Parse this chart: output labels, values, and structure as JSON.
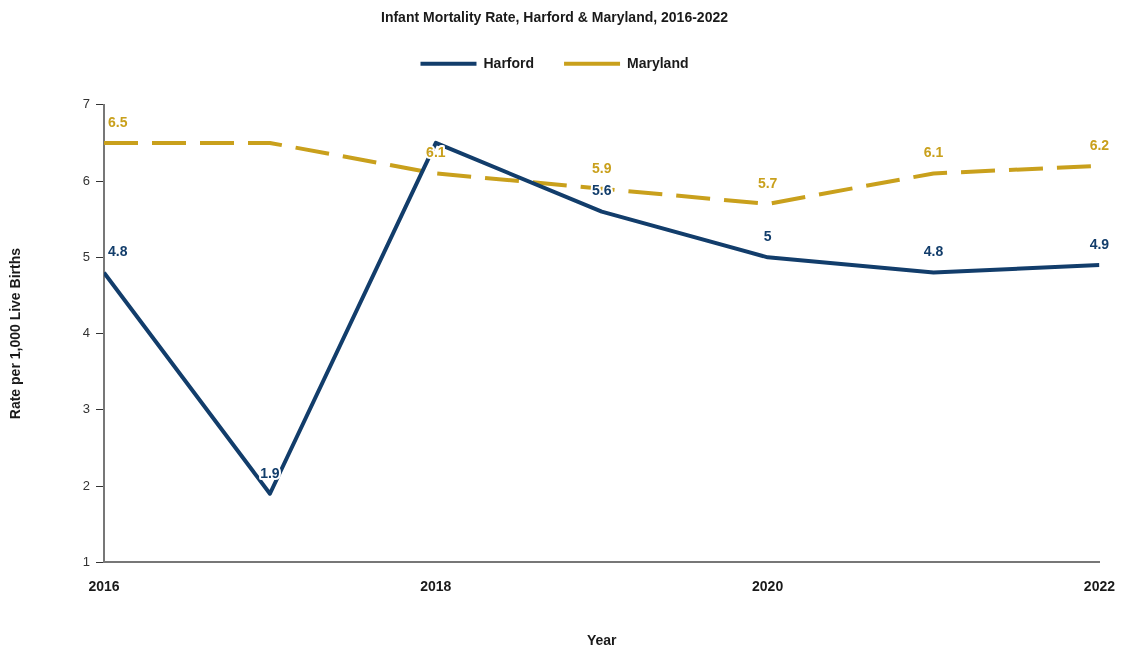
{
  "chart_data": {
    "type": "line",
    "title": "Infant Mortality Rate, Harford & Maryland, 2016-2022",
    "xlabel": "Year",
    "ylabel": "Rate per 1,000 Live Births",
    "x": [
      2016,
      2017,
      2018,
      2019,
      2020,
      2021,
      2022
    ],
    "series": [
      {
        "name": "Harford",
        "color": "#123d6b",
        "line_style": "solid",
        "values": [
          4.8,
          1.9,
          6.5,
          5.6,
          5,
          4.8,
          4.9
        ],
        "value_labels": [
          "4.8",
          "1.9",
          null,
          "5.6",
          "5",
          "4.8",
          "4.9"
        ]
      },
      {
        "name": "Maryland",
        "color": "#c9a01c",
        "line_style": "dashed",
        "values": [
          6.5,
          6.5,
          6.1,
          5.9,
          5.7,
          6.1,
          6.2
        ],
        "value_labels": [
          "6.5",
          null,
          "6.1",
          "5.9",
          "5.7",
          "6.1",
          "6.2"
        ]
      }
    ],
    "xlim": [
      2016,
      2022
    ],
    "xticks": [
      2016,
      2018,
      2020,
      2022
    ],
    "ylim": [
      1,
      7
    ],
    "yticks": [
      1,
      2,
      3,
      4,
      5,
      6,
      7
    ],
    "legend": "top",
    "marker": "none"
  }
}
